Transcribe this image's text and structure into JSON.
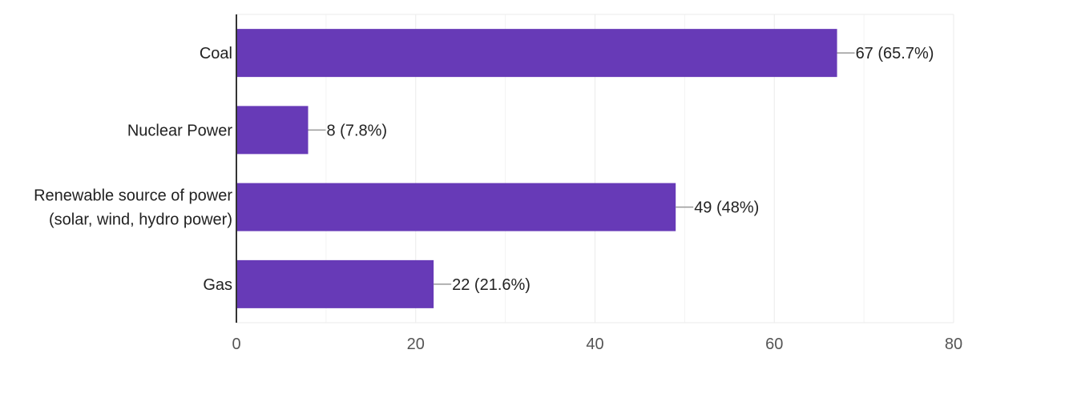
{
  "chart_data": {
    "type": "bar",
    "orientation": "horizontal",
    "categories": [
      [
        "Coal"
      ],
      [
        "Nuclear Power"
      ],
      [
        "Renewable source of power",
        "(solar, wind, hydro power)"
      ],
      [
        "Gas"
      ]
    ],
    "values": [
      67,
      8,
      49,
      22
    ],
    "data_labels": [
      "67 (65.7%)",
      "8 (7.8%)",
      "49 (48%)",
      "22 (21.6%)"
    ],
    "xlim": [
      0,
      80
    ],
    "x_ticks": [
      0,
      20,
      40,
      60,
      80
    ],
    "x_minor_gridlines": [
      10,
      30,
      50,
      70
    ],
    "grid": true,
    "legend": "none",
    "title": "",
    "xlabel": "",
    "ylabel": "",
    "colors": {
      "bar": "#673ab7"
    }
  }
}
